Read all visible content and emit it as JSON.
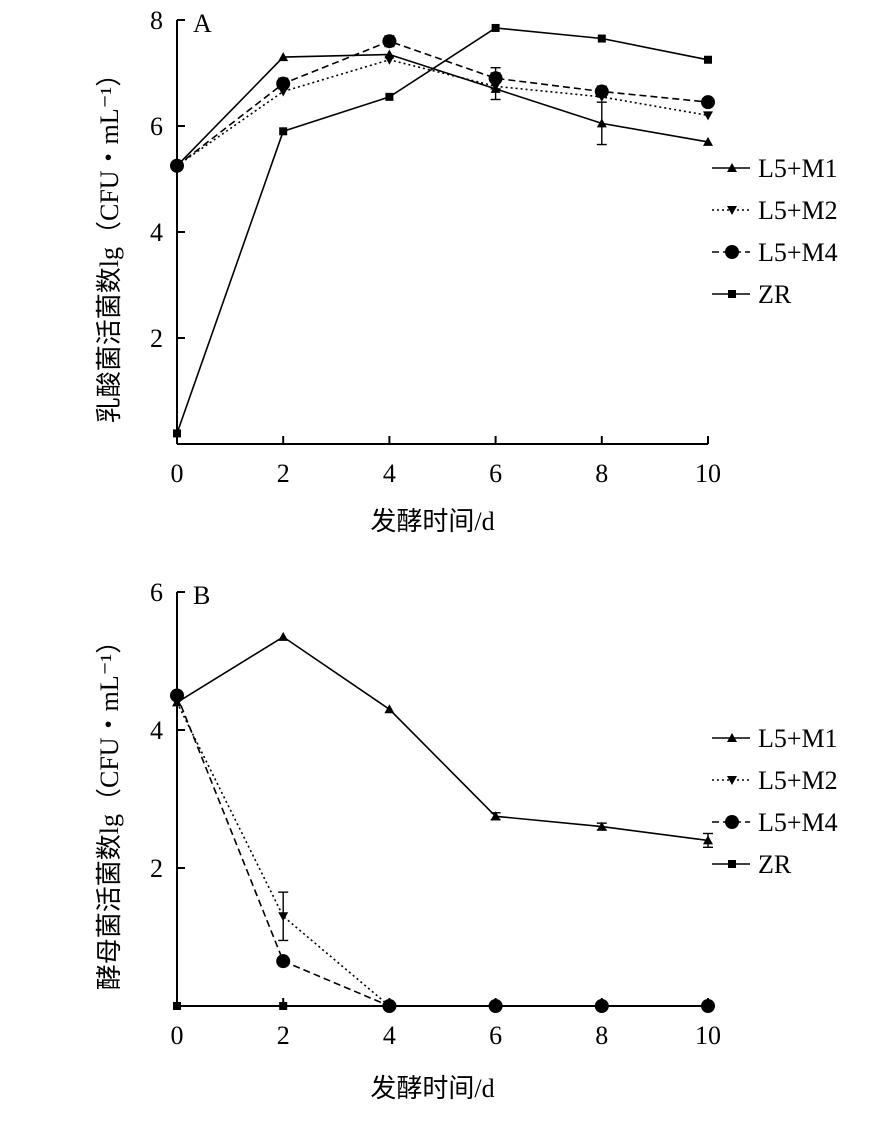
{
  "chart_data": [
    {
      "type": "line",
      "panel_label": "A",
      "xlabel": "发酵时间/d",
      "ylabel": "乳酸菌活菌数lg（CFU・mL⁻¹）",
      "x": [
        0,
        2,
        4,
        6,
        8,
        10
      ],
      "xlim": [
        0,
        10
      ],
      "ylim": [
        0,
        8
      ],
      "xticks": [
        0,
        2,
        4,
        6,
        8,
        10
      ],
      "yticks": [
        2,
        4,
        6,
        8
      ],
      "xtick_labels": [
        "0",
        "2",
        "4",
        "6",
        "8",
        "10"
      ],
      "ytick_labels": [
        "2",
        "4",
        "6",
        "8"
      ],
      "grid": false,
      "legend_position": "right",
      "series": [
        {
          "name": "L5+M1",
          "marker": "triangle-up",
          "line_style": "solid",
          "values": [
            5.25,
            7.3,
            7.35,
            6.7,
            6.05,
            5.7
          ],
          "error": [
            0,
            0,
            0,
            0,
            0.4,
            0
          ]
        },
        {
          "name": "L5+M2",
          "marker": "triangle-down",
          "line_style": "dotted",
          "values": [
            5.25,
            6.65,
            7.25,
            6.75,
            6.55,
            6.2
          ],
          "error": [
            0,
            0,
            0,
            0.25,
            0,
            0
          ]
        },
        {
          "name": "L5+M4",
          "marker": "circle",
          "line_style": "dashed",
          "values": [
            5.25,
            6.8,
            7.6,
            6.9,
            6.65,
            6.45
          ],
          "error": [
            0,
            0.1,
            0.1,
            0.2,
            0.1,
            0.05
          ]
        },
        {
          "name": "ZR",
          "marker": "square",
          "line_style": "solid",
          "values": [
            0.2,
            5.9,
            6.55,
            7.85,
            7.65,
            7.25
          ],
          "error": [
            0,
            0,
            0,
            0,
            0,
            0
          ]
        }
      ]
    },
    {
      "type": "line",
      "panel_label": "B",
      "xlabel": "发酵时间/d",
      "ylabel": "酵母菌活菌数lg（CFU・mL⁻¹）",
      "x": [
        0,
        2,
        4,
        6,
        8,
        10
      ],
      "xlim": [
        0,
        10
      ],
      "ylim": [
        0,
        6
      ],
      "xticks": [
        0,
        2,
        4,
        6,
        8,
        10
      ],
      "yticks": [
        2,
        4,
        6
      ],
      "xtick_labels": [
        "0",
        "2",
        "4",
        "6",
        "8",
        "10"
      ],
      "ytick_labels": [
        "2",
        "4",
        "6"
      ],
      "grid": false,
      "legend_position": "right",
      "series": [
        {
          "name": "L5+M1",
          "marker": "triangle-up",
          "line_style": "solid",
          "values": [
            4.4,
            5.35,
            4.3,
            2.75,
            2.6,
            2.4
          ],
          "error": [
            0,
            0,
            0,
            0.05,
            0.05,
            0.1
          ]
        },
        {
          "name": "L5+M2",
          "marker": "triangle-down",
          "line_style": "dotted",
          "values": [
            4.4,
            1.3,
            0,
            0,
            0,
            0
          ],
          "error": [
            0,
            0.35,
            0,
            0,
            0,
            0
          ]
        },
        {
          "name": "L5+M4",
          "marker": "circle",
          "line_style": "dashed",
          "values": [
            4.5,
            0.65,
            0,
            0,
            0,
            0
          ],
          "error": [
            0,
            0.05,
            0,
            0,
            0,
            0
          ]
        },
        {
          "name": "ZR",
          "marker": "square",
          "line_style": "solid",
          "values": [
            0,
            0,
            0,
            0,
            0,
            0
          ],
          "error": [
            0,
            0,
            0,
            0,
            0,
            0
          ]
        }
      ]
    }
  ]
}
